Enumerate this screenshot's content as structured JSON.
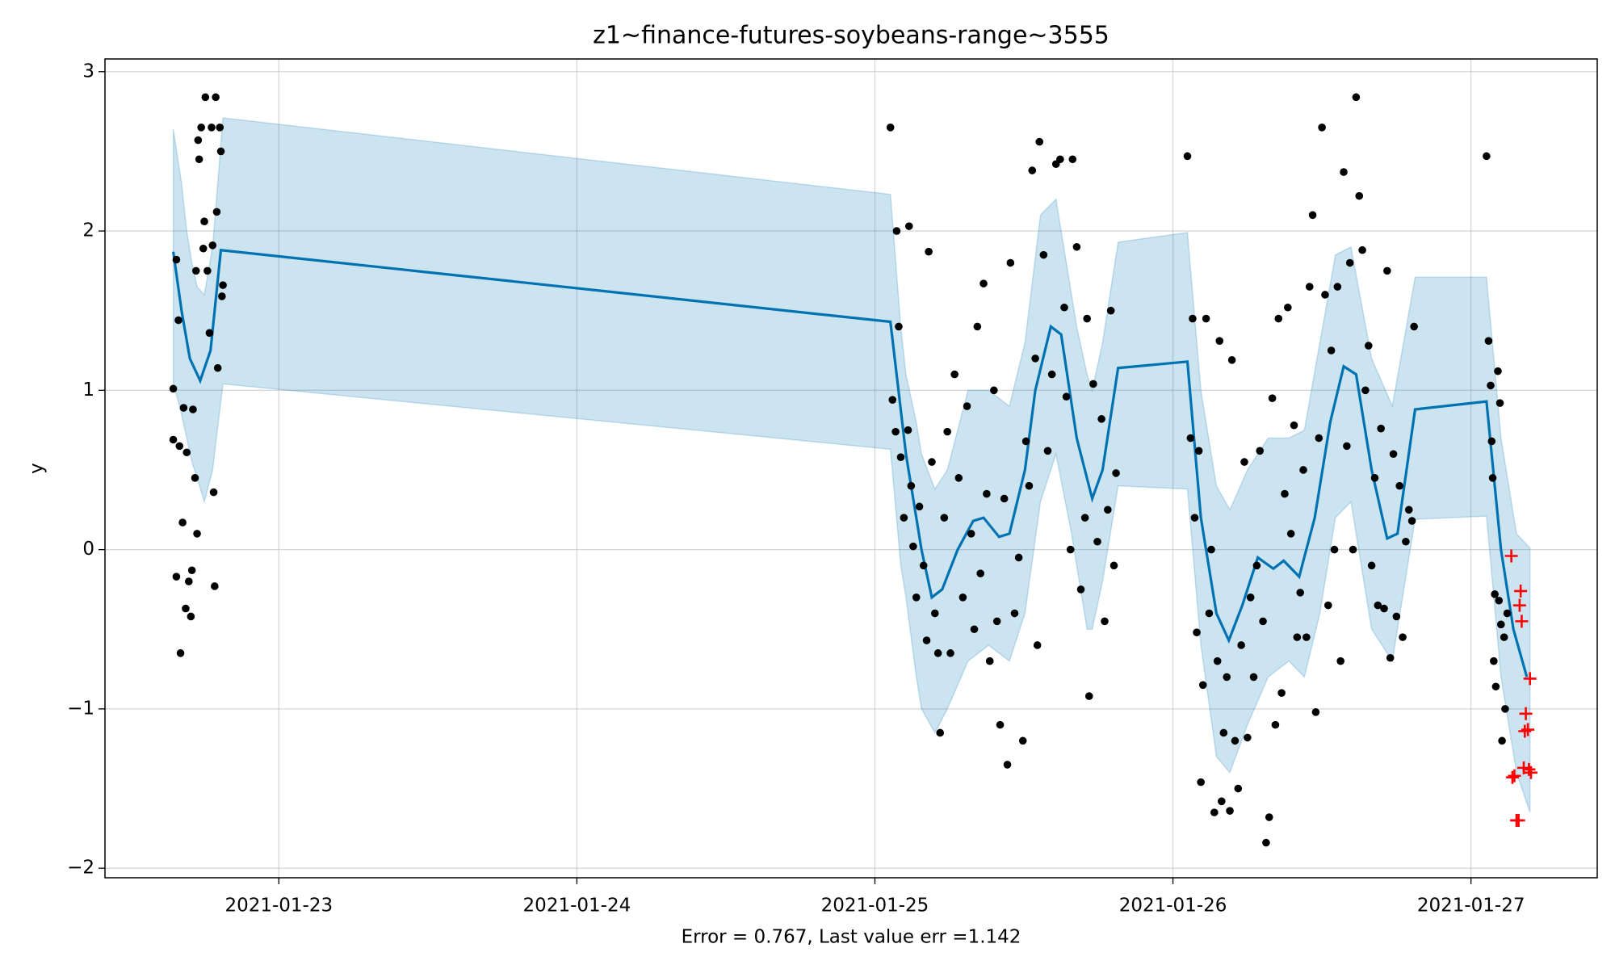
{
  "chart_data": {
    "type": "forecast",
    "title": "z1~finance-futures-soybeans-range~3555",
    "x_label": "Error = 0.767, Last value err =1.142",
    "y_label": "y",
    "xlim": [
      "2021-01-22T10:00",
      "2021-01-27T10:10"
    ],
    "xticks": [
      "2021-01-23",
      "2021-01-24",
      "2021-01-25",
      "2021-01-26",
      "2021-01-27"
    ],
    "ylim": [
      -2.06,
      3.08
    ],
    "yticks": [
      {
        "value": -2,
        "label": "−2"
      },
      {
        "value": -1,
        "label": "−1"
      },
      0,
      1,
      2,
      3
    ],
    "grid": true,
    "series": [
      {
        "kind": "area",
        "color": "#0072B2",
        "x": [
          "2021-01-22T15:30",
          "2021-01-22T16:10",
          "2021-01-22T16:35",
          "2021-01-22T17:00",
          "2021-01-22T17:25",
          "2021-01-22T18:00",
          "2021-01-22T18:40",
          "2021-01-22T19:30",
          "2021-01-25T01:15",
          "2021-01-25T02:05",
          "2021-01-25T02:30",
          "2021-01-25T03:20",
          "2021-01-25T03:45",
          "2021-01-25T04:50",
          "2021-01-25T05:50",
          "2021-01-25T07:30",
          "2021-01-25T09:10",
          "2021-01-25T10:50",
          "2021-01-25T12:05",
          "2021-01-25T13:20",
          "2021-01-25T14:35",
          "2021-01-25T15:50",
          "2021-01-25T16:15",
          "2021-01-25T17:05",
          "2021-01-25T17:30",
          "2021-01-25T18:20",
          "2021-01-25T19:35",
          "2021-01-26T01:10",
          "2021-01-26T02:15",
          "2021-01-26T03:30",
          "2021-01-26T04:35",
          "2021-01-26T06:00",
          "2021-01-26T07:40",
          "2021-01-26T09:20",
          "2021-01-26T10:35",
          "2021-01-26T11:50",
          "2021-01-26T13:05",
          "2021-01-26T14:20",
          "2021-01-26T16:00",
          "2021-01-26T17:40",
          "2021-01-26T19:30",
          "2021-01-27T01:15",
          "2021-01-27T02:25",
          "2021-01-27T03:40",
          "2021-01-27T04:45"
        ],
        "upper": [
          2.64,
          2.3,
          2.0,
          1.8,
          1.65,
          1.6,
          1.9,
          2.71,
          2.23,
          1.4,
          1.1,
          0.8,
          0.6,
          0.38,
          0.5,
          1.0,
          1.0,
          0.9,
          1.3,
          2.1,
          2.2,
          1.6,
          1.4,
          1.1,
          1.0,
          1.3,
          1.93,
          1.99,
          1.0,
          0.4,
          0.25,
          0.5,
          0.7,
          0.7,
          0.75,
          1.3,
          1.85,
          1.9,
          1.2,
          0.9,
          1.71,
          1.71,
          0.7,
          0.1,
          0.01
        ],
        "lower": [
          1.05,
          0.85,
          0.7,
          0.55,
          0.45,
          0.3,
          0.5,
          1.04,
          0.63,
          -0.1,
          -0.3,
          -0.8,
          -1.0,
          -1.15,
          -1.0,
          -0.7,
          -0.6,
          -0.7,
          -0.4,
          0.3,
          0.6,
          0.1,
          -0.1,
          -0.5,
          -0.5,
          -0.2,
          0.4,
          0.38,
          -0.6,
          -1.3,
          -1.4,
          -1.1,
          -0.8,
          -0.7,
          -0.8,
          -0.4,
          0.2,
          0.3,
          -0.5,
          -0.7,
          0.19,
          0.21,
          -0.8,
          -1.4,
          -1.65
        ]
      },
      {
        "kind": "line",
        "color": "#0072B2",
        "x": [
          "2021-01-22T15:30",
          "2021-01-22T16:10",
          "2021-01-22T16:50",
          "2021-01-22T17:40",
          "2021-01-22T18:30",
          "2021-01-22T19:20",
          "2021-01-25T01:15",
          "2021-01-25T02:30",
          "2021-01-25T03:45",
          "2021-01-25T04:35",
          "2021-01-25T05:25",
          "2021-01-25T06:40",
          "2021-01-25T07:55",
          "2021-01-25T08:45",
          "2021-01-25T10:00",
          "2021-01-25T10:50",
          "2021-01-25T12:05",
          "2021-01-25T12:55",
          "2021-01-25T14:10",
          "2021-01-25T15:00",
          "2021-01-25T16:15",
          "2021-01-25T17:30",
          "2021-01-25T18:20",
          "2021-01-25T19:35",
          "2021-01-26T01:10",
          "2021-01-26T02:15",
          "2021-01-26T03:30",
          "2021-01-26T04:30",
          "2021-01-26T05:35",
          "2021-01-26T06:50",
          "2021-01-26T08:05",
          "2021-01-26T08:55",
          "2021-01-26T10:10",
          "2021-01-26T11:25",
          "2021-01-26T12:40",
          "2021-01-26T13:45",
          "2021-01-26T14:45",
          "2021-01-26T16:00",
          "2021-01-26T17:15",
          "2021-01-26T18:05",
          "2021-01-26T19:30",
          "2021-01-27T01:15",
          "2021-01-27T02:25",
          "2021-01-27T03:25",
          "2021-01-27T04:30"
        ],
        "values": [
          1.87,
          1.5,
          1.2,
          1.06,
          1.25,
          1.88,
          1.43,
          0.6,
          0.0,
          -0.3,
          -0.25,
          0.0,
          0.18,
          0.2,
          0.08,
          0.1,
          0.5,
          1.0,
          1.4,
          1.35,
          0.7,
          0.32,
          0.5,
          1.14,
          1.18,
          0.2,
          -0.4,
          -0.57,
          -0.35,
          -0.05,
          -0.12,
          -0.07,
          -0.17,
          0.2,
          0.8,
          1.15,
          1.1,
          0.5,
          0.07,
          0.1,
          0.88,
          0.93,
          0.0,
          -0.5,
          -0.8
        ]
      },
      {
        "kind": "scatter",
        "marker": "dot",
        "color": "#000000",
        "x": [
          "2021-01-22T15:30",
          "2021-01-22T15:30",
          "2021-01-22T15:45",
          "2021-01-22T15:45",
          "2021-01-22T15:55",
          "2021-01-22T16:00",
          "2021-01-22T16:05",
          "2021-01-22T16:15",
          "2021-01-22T16:20",
          "2021-01-22T16:30",
          "2021-01-22T16:35",
          "2021-01-22T16:45",
          "2021-01-22T16:55",
          "2021-01-22T17:00",
          "2021-01-22T17:05",
          "2021-01-22T17:15",
          "2021-01-22T17:20",
          "2021-01-22T17:25",
          "2021-01-22T17:30",
          "2021-01-22T17:35",
          "2021-01-22T17:45",
          "2021-01-22T17:55",
          "2021-01-22T18:00",
          "2021-01-22T18:05",
          "2021-01-22T18:15",
          "2021-01-22T18:25",
          "2021-01-22T18:35",
          "2021-01-22T18:40",
          "2021-01-22T18:45",
          "2021-01-22T18:50",
          "2021-01-22T18:55",
          "2021-01-22T19:00",
          "2021-01-22T19:05",
          "2021-01-22T19:15",
          "2021-01-22T19:20",
          "2021-01-22T19:25",
          "2021-01-22T19:30",
          "2021-01-25T01:15",
          "2021-01-25T01:25",
          "2021-01-25T01:40",
          "2021-01-25T01:45",
          "2021-01-25T01:55",
          "2021-01-25T02:05",
          "2021-01-25T02:20",
          "2021-01-25T02:40",
          "2021-01-25T02:45",
          "2021-01-25T02:55",
          "2021-01-25T03:05",
          "2021-01-25T03:20",
          "2021-01-25T03:35",
          "2021-01-25T03:55",
          "2021-01-25T04:10",
          "2021-01-25T04:20",
          "2021-01-25T04:35",
          "2021-01-25T04:50",
          "2021-01-25T05:05",
          "2021-01-25T05:15",
          "2021-01-25T05:35",
          "2021-01-25T05:50",
          "2021-01-25T06:05",
          "2021-01-25T06:25",
          "2021-01-25T06:45",
          "2021-01-25T07:05",
          "2021-01-25T07:25",
          "2021-01-25T07:45",
          "2021-01-25T08:00",
          "2021-01-25T08:15",
          "2021-01-25T08:30",
          "2021-01-25T08:45",
          "2021-01-25T09:00",
          "2021-01-25T09:15",
          "2021-01-25T09:35",
          "2021-01-25T09:50",
          "2021-01-25T10:05",
          "2021-01-25T10:25",
          "2021-01-25T10:40",
          "2021-01-25T10:55",
          "2021-01-25T11:15",
          "2021-01-25T11:35",
          "2021-01-25T11:55",
          "2021-01-25T12:10",
          "2021-01-25T12:25",
          "2021-01-25T12:40",
          "2021-01-25T12:55",
          "2021-01-25T13:05",
          "2021-01-25T13:15",
          "2021-01-25T13:35",
          "2021-01-25T13:55",
          "2021-01-25T14:15",
          "2021-01-25T14:35",
          "2021-01-25T14:55",
          "2021-01-25T15:15",
          "2021-01-25T15:25",
          "2021-01-25T15:45",
          "2021-01-25T15:55",
          "2021-01-25T16:15",
          "2021-01-25T16:35",
          "2021-01-25T16:55",
          "2021-01-25T17:05",
          "2021-01-25T17:15",
          "2021-01-25T17:35",
          "2021-01-25T17:55",
          "2021-01-25T18:15",
          "2021-01-25T18:30",
          "2021-01-25T18:45",
          "2021-01-25T19:00",
          "2021-01-25T19:15",
          "2021-01-25T19:25",
          "2021-01-26T01:10",
          "2021-01-26T01:25",
          "2021-01-26T01:35",
          "2021-01-26T01:45",
          "2021-01-26T01:55",
          "2021-01-26T02:05",
          "2021-01-26T02:15",
          "2021-01-26T02:25",
          "2021-01-26T02:40",
          "2021-01-26T02:55",
          "2021-01-26T03:05",
          "2021-01-26T03:20",
          "2021-01-26T03:35",
          "2021-01-26T03:45",
          "2021-01-26T03:55",
          "2021-01-26T04:05",
          "2021-01-26T04:20",
          "2021-01-26T04:35",
          "2021-01-26T04:45",
          "2021-01-26T05:00",
          "2021-01-26T05:15",
          "2021-01-26T05:30",
          "2021-01-26T05:45",
          "2021-01-26T06:00",
          "2021-01-26T06:15",
          "2021-01-26T06:30",
          "2021-01-26T06:45",
          "2021-01-26T07:00",
          "2021-01-26T07:15",
          "2021-01-26T07:30",
          "2021-01-26T07:45",
          "2021-01-26T08:00",
          "2021-01-26T08:15",
          "2021-01-26T08:30",
          "2021-01-26T08:45",
          "2021-01-26T09:00",
          "2021-01-26T09:15",
          "2021-01-26T09:30",
          "2021-01-26T09:45",
          "2021-01-26T10:00",
          "2021-01-26T10:15",
          "2021-01-26T10:30",
          "2021-01-26T10:45",
          "2021-01-26T11:00",
          "2021-01-26T11:15",
          "2021-01-26T11:30",
          "2021-01-26T11:45",
          "2021-01-26T12:00",
          "2021-01-26T12:15",
          "2021-01-26T12:30",
          "2021-01-26T12:45",
          "2021-01-26T13:00",
          "2021-01-26T13:15",
          "2021-01-26T13:30",
          "2021-01-26T13:45",
          "2021-01-26T14:00",
          "2021-01-26T14:15",
          "2021-01-26T14:30",
          "2021-01-26T14:45",
          "2021-01-26T15:00",
          "2021-01-26T15:15",
          "2021-01-26T15:30",
          "2021-01-26T15:45",
          "2021-01-26T16:00",
          "2021-01-26T16:15",
          "2021-01-26T16:30",
          "2021-01-26T16:45",
          "2021-01-26T17:00",
          "2021-01-26T17:15",
          "2021-01-26T17:30",
          "2021-01-26T17:45",
          "2021-01-26T18:00",
          "2021-01-26T18:15",
          "2021-01-26T18:30",
          "2021-01-26T18:45",
          "2021-01-26T19:00",
          "2021-01-26T19:15",
          "2021-01-26T19:25",
          "2021-01-27T01:15",
          "2021-01-27T01:25",
          "2021-01-27T01:35",
          "2021-01-27T01:40",
          "2021-01-27T01:45",
          "2021-01-27T01:50",
          "2021-01-27T01:55",
          "2021-01-27T02:00",
          "2021-01-27T02:10",
          "2021-01-27T02:15",
          "2021-01-27T02:20",
          "2021-01-27T02:25",
          "2021-01-27T02:30",
          "2021-01-27T02:40",
          "2021-01-27T02:45",
          "2021-01-27T02:55"
        ],
        "values": [
          1.01,
          0.69,
          1.82,
          -0.17,
          1.44,
          0.65,
          -0.65,
          0.17,
          0.89,
          -0.37,
          0.61,
          -0.2,
          -0.42,
          -0.13,
          0.88,
          0.45,
          1.75,
          0.1,
          2.57,
          2.45,
          2.65,
          1.89,
          2.06,
          2.84,
          1.75,
          1.36,
          2.65,
          1.91,
          0.36,
          -0.23,
          2.84,
          2.12,
          1.14,
          2.65,
          2.5,
          1.59,
          1.66,
          2.65,
          0.94,
          0.74,
          2.0,
          1.4,
          0.58,
          0.2,
          0.75,
          2.03,
          0.4,
          0.02,
          -0.3,
          0.27,
          -0.1,
          -0.57,
          1.87,
          0.55,
          -0.4,
          -0.65,
          -1.15,
          0.2,
          0.74,
          -0.65,
          1.1,
          0.45,
          -0.3,
          0.9,
          0.1,
          -0.5,
          1.4,
          -0.15,
          1.67,
          0.35,
          -0.7,
          1.0,
          -0.45,
          -1.1,
          0.32,
          -1.35,
          1.8,
          -0.4,
          -0.05,
          -1.2,
          0.68,
          0.4,
          2.38,
          1.2,
          -0.6,
          2.56,
          1.85,
          0.62,
          1.1,
          2.42,
          2.45,
          1.52,
          0.96,
          0.0,
          2.45,
          1.9,
          -0.25,
          0.2,
          1.45,
          -0.92,
          1.04,
          0.05,
          0.82,
          -0.45,
          0.25,
          1.5,
          -0.1,
          0.48,
          2.47,
          0.7,
          1.45,
          0.2,
          -0.52,
          0.62,
          -1.46,
          -0.85,
          1.45,
          -0.4,
          0.0,
          -1.65,
          -0.7,
          1.31,
          -1.58,
          -1.15,
          -0.8,
          -1.64,
          1.19,
          -1.2,
          -1.5,
          -0.6,
          0.55,
          -1.18,
          -0.3,
          -0.8,
          -0.1,
          0.62,
          -0.45,
          -1.84,
          -1.68,
          0.95,
          -1.1,
          1.45,
          -0.9,
          0.35,
          1.52,
          0.1,
          0.78,
          -0.55,
          -0.27,
          0.5,
          -0.55,
          1.65,
          2.1,
          -1.02,
          0.7,
          2.65,
          1.6,
          -0.35,
          1.25,
          0.0,
          1.65,
          -0.7,
          2.37,
          0.65,
          1.8,
          0.0,
          2.84,
          2.22,
          1.88,
          1.0,
          1.28,
          -0.1,
          0.45,
          -0.35,
          0.76,
          -0.37,
          1.75,
          -0.68,
          0.6,
          -0.42,
          0.4,
          -0.55,
          0.05,
          0.25,
          0.18,
          1.4,
          2.47,
          1.31,
          1.03,
          0.68,
          0.45,
          -0.7,
          -0.28,
          -0.86,
          1.12,
          -0.32,
          0.92,
          -0.47,
          -1.2,
          -0.55,
          -1.0,
          -0.4
        ]
      },
      {
        "kind": "scatter",
        "marker": "plus",
        "color": "#ff0000",
        "x": [
          "2021-01-27T03:15",
          "2021-01-27T03:20",
          "2021-01-27T03:30",
          "2021-01-27T03:40",
          "2021-01-27T03:50",
          "2021-01-27T03:55",
          "2021-01-27T04:00",
          "2021-01-27T04:05",
          "2021-01-27T04:15",
          "2021-01-27T04:20",
          "2021-01-27T04:25",
          "2021-01-27T04:35",
          "2021-01-27T04:40",
          "2021-01-27T04:45",
          "2021-01-27T04:50"
        ],
        "values": [
          -0.04,
          -1.43,
          -1.42,
          -1.7,
          -1.7,
          -0.35,
          -0.26,
          -0.45,
          -1.37,
          -1.14,
          -1.03,
          -1.13,
          -1.38,
          -0.81,
          -1.4
        ]
      }
    ]
  }
}
